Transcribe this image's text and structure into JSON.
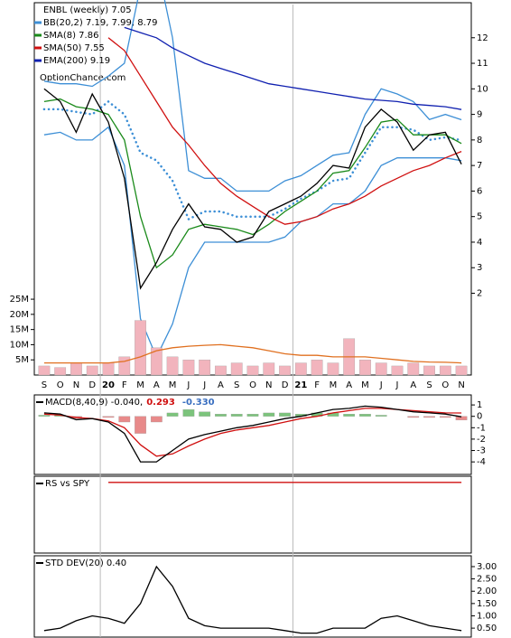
{
  "chart_data": [
    {
      "type": "line",
      "title": "ENBL (weekly) 7.05",
      "watermark": "OptionChance.com",
      "categories": [
        "S",
        "O",
        "N",
        "D",
        "20",
        "F",
        "M",
        "A",
        "M",
        "J",
        "J",
        "A",
        "S",
        "O",
        "N",
        "D",
        "21",
        "F",
        "M",
        "A",
        "M",
        "J",
        "J",
        "A",
        "S",
        "O",
        "N"
      ],
      "ylim": [
        -1.2,
        13.3
      ],
      "yticks": [
        2,
        3,
        4,
        5,
        6,
        7,
        8,
        9,
        10,
        11,
        12
      ],
      "axis_side": "right",
      "series": [
        {
          "name": "BB(20,2) 7.19, 7.99, 8.79",
          "color": "#3d8fd6",
          "values": [
            10.3,
            10.2,
            10.2,
            10.1,
            10.5,
            11,
            14,
            15,
            12,
            6.8,
            6.5,
            6.5,
            6,
            6,
            6,
            6.4,
            6.6,
            7,
            7.4,
            7.5,
            9,
            10,
            9.8,
            9.5,
            8.8,
            9,
            8.79
          ]
        },
        {
          "color": "#3d8fd6",
          "values": [
            8.2,
            8.3,
            8,
            8,
            8.5,
            7,
            1,
            -0.5,
            0.8,
            3,
            4,
            4,
            4,
            4,
            4,
            4.2,
            4.8,
            5,
            5.5,
            5.5,
            6,
            7,
            7.3,
            7.3,
            7.3,
            7.3,
            7.19
          ]
        },
        {
          "color": "#3d8fd6",
          "dash": true,
          "values": [
            9.2,
            9.2,
            9.1,
            9,
            9.5,
            9,
            7.5,
            7.2,
            6.4,
            4.9,
            5.2,
            5.2,
            5,
            5,
            5,
            5.3,
            5.7,
            6,
            6.4,
            6.5,
            7.5,
            8.5,
            8.5,
            8.4,
            8,
            8.1,
            7.99
          ]
        },
        {
          "name": "SMA(8) 7.86",
          "color": "#1a8a1a",
          "values": [
            9.5,
            9.6,
            9.3,
            9.2,
            9,
            8,
            5,
            3,
            3.5,
            4.5,
            4.7,
            4.6,
            4.5,
            4.3,
            4.7,
            5.2,
            5.6,
            6,
            6.7,
            6.8,
            7.7,
            8.7,
            8.8,
            8.2,
            8.2,
            8.2,
            7.86
          ]
        },
        {
          "name": "SMA(50) 7.55",
          "color": "#d01010",
          "values": [
            null,
            null,
            null,
            null,
            12,
            11.5,
            10.5,
            9.5,
            8.5,
            7.8,
            7,
            6.3,
            5.8,
            5.4,
            5,
            4.7,
            4.8,
            5,
            5.3,
            5.5,
            5.8,
            6.2,
            6.5,
            6.8,
            7,
            7.3,
            7.55
          ]
        },
        {
          "name": "EMA(200) 9.19",
          "color": "#1020b0",
          "values": [
            null,
            null,
            null,
            null,
            null,
            12.4,
            12.2,
            12,
            11.6,
            11.3,
            11,
            10.8,
            10.6,
            10.4,
            10.2,
            10.1,
            10,
            9.9,
            9.8,
            9.7,
            9.6,
            9.55,
            9.5,
            9.4,
            9.35,
            9.3,
            9.19
          ]
        },
        {
          "color": "#000000",
          "values": [
            10,
            9.5,
            8.3,
            9.8,
            8.7,
            6.5,
            2.2,
            3.2,
            4.5,
            5.5,
            4.6,
            4.5,
            4,
            4.2,
            5.2,
            5.5,
            5.8,
            6.3,
            7,
            6.9,
            8.5,
            9.2,
            8.7,
            7.6,
            8.2,
            8.3,
            7.05
          ]
        }
      ]
    },
    {
      "type": "bar",
      "ylim": [
        0,
        28.3
      ],
      "axis_side": "left",
      "yticks": [
        {
          "value": 5,
          "label": "5M"
        },
        {
          "value": 10,
          "label": "10M"
        },
        {
          "value": 15,
          "label": "15M"
        },
        {
          "value": 20,
          "label": "20M"
        },
        {
          "value": 25,
          "label": "25M"
        }
      ],
      "series": [
        {
          "type": "bar",
          "color": "#f2b4bd",
          "values": [
            3,
            2.5,
            4,
            3,
            4,
            6,
            18,
            9,
            6,
            5,
            5,
            3,
            4,
            3,
            4,
            3,
            4,
            5,
            4,
            12,
            5,
            4,
            3,
            4,
            3,
            3,
            3
          ]
        },
        {
          "type": "line",
          "color": "#e07020",
          "values": [
            4,
            4,
            4,
            4,
            4,
            4.5,
            6,
            8,
            9,
            9.5,
            9.8,
            10,
            9.5,
            9,
            8,
            7,
            6.5,
            6.5,
            6,
            6,
            6,
            5.5,
            5,
            4.5,
            4.3,
            4.2,
            4
          ]
        }
      ]
    },
    {
      "type": "line",
      "title": "MACD(8,40,9) -0.040,",
      "ylim": [
        -5.1,
        1.88
      ],
      "axis_side": "right",
      "yticks": [
        1,
        0,
        -1,
        -2,
        -3,
        -4
      ],
      "series": [
        {
          "type": "bar",
          "name": "-0.330",
          "color": "#3a6fc0",
          "up_color": "#7cc47c",
          "down_color": "#e88a8a",
          "values": [
            0.1,
            0.1,
            -0.2,
            0,
            -0.1,
            -0.5,
            -1.5,
            -0.5,
            0.3,
            0.6,
            0.4,
            0.2,
            0.2,
            0.2,
            0.3,
            0.3,
            0.2,
            0.3,
            0.3,
            0.2,
            0.2,
            0.1,
            0,
            -0.1,
            -0.1,
            -0.1,
            -0.33
          ]
        },
        {
          "name": "0.293",
          "color": "#d01010",
          "values": [
            0.2,
            0.1,
            -0.1,
            -0.2,
            -0.4,
            -1,
            -2.5,
            -3.5,
            -3.3,
            -2.6,
            -2,
            -1.5,
            -1.2,
            -1,
            -0.8,
            -0.5,
            -0.2,
            0,
            0.3,
            0.5,
            0.7,
            0.7,
            0.6,
            0.5,
            0.4,
            0.3,
            0.29
          ]
        },
        {
          "color": "#000000",
          "values": [
            0.3,
            0.2,
            -0.3,
            -0.2,
            -0.5,
            -1.5,
            -4,
            -4,
            -3,
            -2,
            -1.6,
            -1.3,
            -1,
            -0.8,
            -0.5,
            -0.2,
            0,
            0.3,
            0.6,
            0.7,
            0.9,
            0.8,
            0.6,
            0.4,
            0.3,
            0.2,
            -0.04
          ]
        }
      ]
    },
    {
      "type": "line",
      "title": "RS vs SPY",
      "ylim": [
        0,
        1
      ],
      "axis_side": "right",
      "yticks": [],
      "series": [
        {
          "color": "#d01010",
          "values": [
            null,
            null,
            null,
            null,
            0.92,
            0.92,
            0.92,
            0.92,
            0.92,
            0.92,
            0.92,
            0.92,
            0.92,
            0.92,
            0.92,
            0.92,
            0.92,
            0.92,
            0.92,
            0.92,
            0.92,
            0.92,
            0.92,
            0.92,
            0.92,
            0.92,
            0.92
          ]
        }
      ]
    },
    {
      "type": "line",
      "title": "STD DEV(20) 0.40",
      "ylim": [
        0.1,
        3.44
      ],
      "axis_side": "right",
      "yticks": [
        {
          "value": 0.5,
          "label": "0.50"
        },
        {
          "value": 1,
          "label": "1.00"
        },
        {
          "value": 1.5,
          "label": "1.50"
        },
        {
          "value": 2,
          "label": "2.00"
        },
        {
          "value": 2.5,
          "label": "2.50"
        },
        {
          "value": 3,
          "label": "3.00"
        }
      ],
      "series": [
        {
          "color": "#000000",
          "values": [
            0.4,
            0.5,
            0.8,
            1.0,
            0.9,
            0.7,
            1.5,
            3.0,
            2.2,
            0.9,
            0.6,
            0.5,
            0.5,
            0.5,
            0.5,
            0.4,
            0.3,
            0.3,
            0.5,
            0.5,
            0.5,
            0.9,
            1.0,
            0.8,
            0.6,
            0.5,
            0.4
          ]
        }
      ]
    }
  ]
}
